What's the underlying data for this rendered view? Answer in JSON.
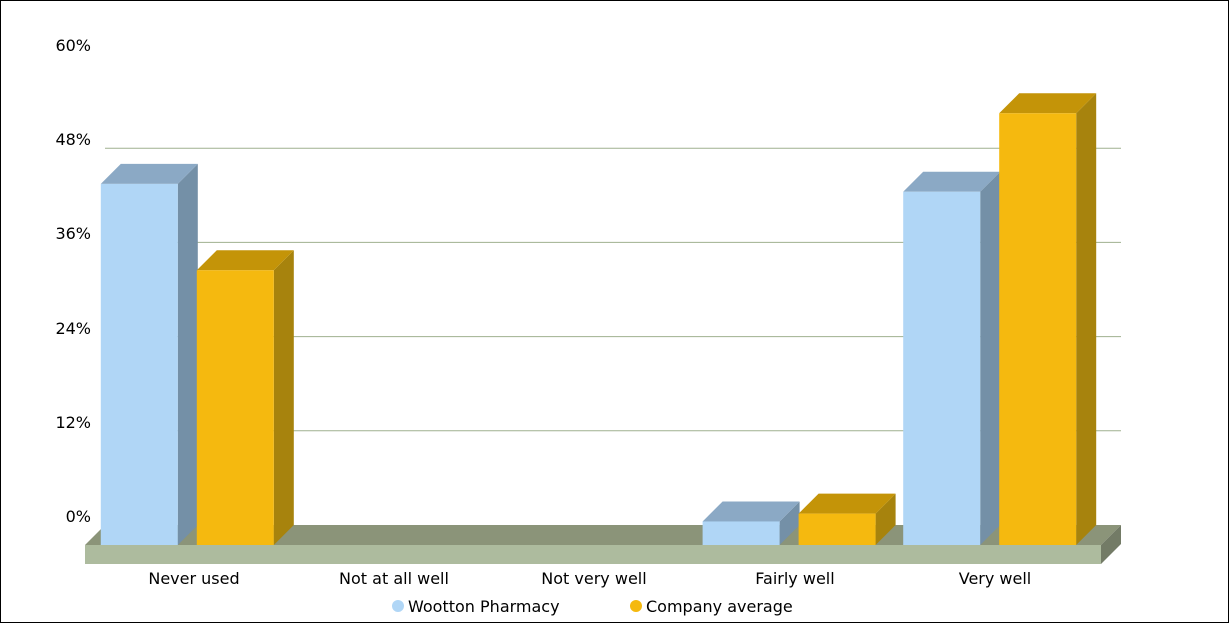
{
  "chart_data": {
    "type": "bar",
    "categories": [
      "Never used",
      "Not at all well",
      "Not very well",
      "Fairly well",
      "Very well"
    ],
    "series": [
      {
        "name": "Wootton Pharmacy",
        "values": [
          46,
          0,
          0,
          3,
          45
        ]
      },
      {
        "name": "Company average",
        "values": [
          35,
          0,
          0,
          4,
          55
        ]
      }
    ],
    "y_ticks": [
      "0%",
      "12%",
      "24%",
      "36%",
      "48%",
      "60%"
    ],
    "ylim": [
      0,
      60
    ],
    "grid": true,
    "legend_position": "bottom-center",
    "colors": {
      "series": [
        "#b0d6f6",
        "#f5b90f"
      ],
      "series_side": [
        "#7490a7",
        "#a7830d"
      ],
      "series_top": [
        "#8ba9c5",
        "#c49408"
      ],
      "gridline": "#9fb08f",
      "floor_top": "#8b9479",
      "floor_front": "#adbb9e",
      "floor_side": "#737b66"
    }
  }
}
